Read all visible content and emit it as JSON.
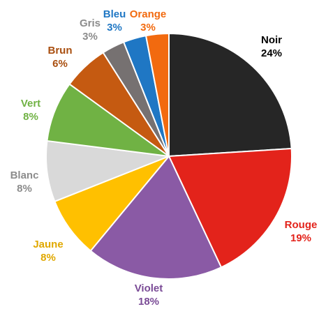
{
  "chart_data": {
    "type": "pie",
    "title": "",
    "start_angle_deg": 0,
    "direction": "clockwise",
    "slices": [
      {
        "label": "Noir",
        "percent_label": "24%",
        "value": 24,
        "color": "#262626",
        "label_color": "#000000"
      },
      {
        "label": "Rouge",
        "percent_label": "19%",
        "value": 19,
        "color": "#e3231b",
        "label_color": "#e3231b"
      },
      {
        "label": "Violet",
        "percent_label": "18%",
        "value": 18,
        "color": "#8a5aa5",
        "label_color": "#7a4b96"
      },
      {
        "label": "Jaune",
        "percent_label": "8%",
        "value": 8,
        "color": "#ffc000",
        "label_color": "#e0a800"
      },
      {
        "label": "Blanc",
        "percent_label": "8%",
        "value": 8,
        "color": "#d9d9d9",
        "label_color": "#8c8c8c"
      },
      {
        "label": "Vert",
        "percent_label": "8%",
        "value": 8,
        "color": "#70b244",
        "label_color": "#70b244"
      },
      {
        "label": "Brun",
        "percent_label": "6%",
        "value": 6,
        "color": "#c55a11",
        "label_color": "#a94f10"
      },
      {
        "label": "Gris",
        "percent_label": "3%",
        "value": 3,
        "color": "#767171",
        "label_color": "#8c8c8c"
      },
      {
        "label": "Bleu",
        "percent_label": "3%",
        "value": 3,
        "color": "#1f77c4",
        "label_color": "#1f77c4"
      },
      {
        "label": "Orange",
        "percent_label": "3%",
        "value": 3,
        "color": "#f26a0f",
        "label_color": "#f26a0f"
      }
    ]
  }
}
